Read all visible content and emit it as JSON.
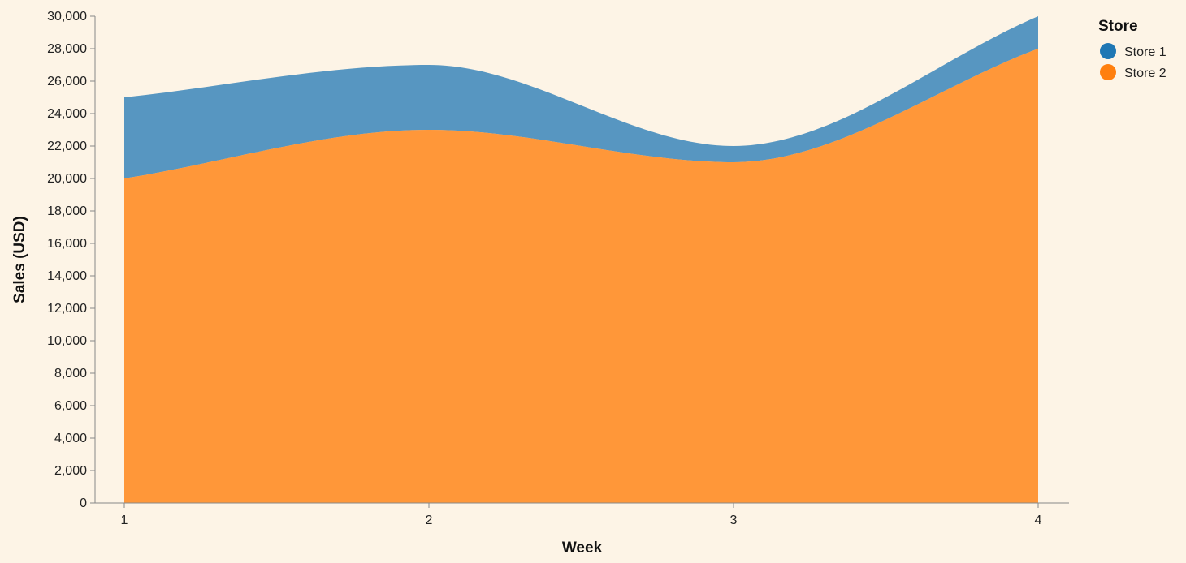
{
  "chart_data": {
    "type": "area",
    "stacked": true,
    "interpolation": "monotone",
    "x": [
      1,
      2,
      3,
      4
    ],
    "xlabel": "Week",
    "ylabel": "Sales (USD)",
    "ylim": [
      0,
      30000
    ],
    "yticks": [
      0,
      2000,
      4000,
      6000,
      8000,
      10000,
      12000,
      14000,
      16000,
      18000,
      20000,
      22000,
      24000,
      26000,
      28000,
      30000
    ],
    "ytick_labels": [
      "0",
      "2,000",
      "4,000",
      "6,000",
      "8,000",
      "10,000",
      "12,000",
      "14,000",
      "16,000",
      "18,000",
      "20,000",
      "22,000",
      "24,000",
      "26,000",
      "28,000",
      "30,000"
    ],
    "xtick_labels": [
      "1",
      "2",
      "3",
      "4"
    ],
    "grid": false,
    "legend": {
      "title": "Store",
      "placement": "right"
    },
    "series": [
      {
        "name": "Store 1",
        "values": [
          5000,
          4000,
          1000,
          2000
        ],
        "color": "#1f77b4"
      },
      {
        "name": "Store 2",
        "values": [
          20000,
          23000,
          21000,
          28000
        ],
        "color": "#ff7f0e"
      }
    ]
  }
}
